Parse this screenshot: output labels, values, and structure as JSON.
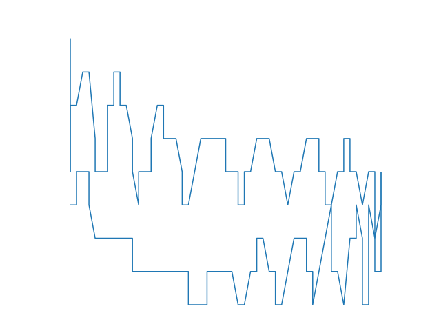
{
  "chart_data": {
    "type": "line",
    "title": "",
    "xlabel": "",
    "ylabel": "",
    "axes_visible": false,
    "grid": false,
    "legend": "none",
    "xlim": [
      0,
      50
    ],
    "ylim": [
      0,
      8.5
    ],
    "color": "#1f77b4",
    "series": [
      {
        "points": [
          [
            0,
            4
          ],
          [
            0,
            6
          ],
          [
            0,
            6
          ],
          [
            1,
            6
          ],
          [
            2,
            7
          ],
          [
            3,
            7
          ],
          [
            4,
            5
          ],
          [
            4,
            4
          ],
          [
            5,
            4
          ],
          [
            6,
            4
          ],
          [
            6,
            6
          ],
          [
            7,
            6
          ],
          [
            7,
            7
          ],
          [
            8,
            7
          ],
          [
            8,
            6
          ],
          [
            9,
            6
          ],
          [
            10,
            5
          ],
          [
            10,
            4
          ],
          [
            11,
            3
          ],
          [
            11,
            4
          ],
          [
            12,
            4
          ],
          [
            13,
            4
          ],
          [
            13,
            5
          ],
          [
            14,
            6
          ],
          [
            15,
            6
          ],
          [
            15,
            5
          ],
          [
            16,
            5
          ],
          [
            17,
            5
          ],
          [
            18,
            4
          ],
          [
            18,
            3
          ],
          [
            19,
            3
          ],
          [
            20,
            4
          ],
          [
            21,
            5
          ],
          [
            22,
            5
          ],
          [
            23,
            5
          ],
          [
            24,
            5
          ],
          [
            25,
            5
          ],
          [
            25,
            4
          ],
          [
            26,
            4
          ],
          [
            27,
            4
          ],
          [
            27,
            3
          ],
          [
            28,
            3
          ],
          [
            28,
            4
          ],
          [
            29,
            4
          ],
          [
            30,
            5
          ],
          [
            31,
            5
          ],
          [
            32,
            5
          ],
          [
            33,
            4
          ],
          [
            34,
            4
          ],
          [
            35,
            3
          ],
          [
            36,
            4
          ],
          [
            37,
            4
          ],
          [
            38,
            5
          ],
          [
            39,
            5
          ],
          [
            40,
            5
          ],
          [
            40,
            4
          ],
          [
            41,
            4
          ],
          [
            41,
            3
          ],
          [
            42,
            3
          ],
          [
            43,
            4
          ],
          [
            44,
            4
          ],
          [
            44,
            5
          ],
          [
            45,
            5
          ],
          [
            45,
            4
          ],
          [
            46,
            4
          ],
          [
            47,
            3
          ],
          [
            48,
            4
          ],
          [
            49,
            4
          ],
          [
            49,
            2
          ],
          [
            50,
            3
          ],
          [
            50,
            4
          ]
        ]
      },
      {
        "points": [
          [
            0,
            3
          ],
          [
            1,
            3
          ],
          [
            1,
            4
          ],
          [
            2,
            4
          ],
          [
            3,
            4
          ],
          [
            3,
            3
          ],
          [
            4,
            2
          ],
          [
            5,
            2
          ],
          [
            6,
            2
          ],
          [
            7,
            2
          ],
          [
            8,
            2
          ],
          [
            9,
            2
          ],
          [
            10,
            2
          ],
          [
            10,
            1
          ],
          [
            11,
            1
          ],
          [
            12,
            1
          ],
          [
            13,
            1
          ],
          [
            14,
            1
          ],
          [
            15,
            1
          ],
          [
            16,
            1
          ],
          [
            17,
            1
          ],
          [
            18,
            1
          ],
          [
            19,
            1
          ],
          [
            19,
            0
          ],
          [
            20,
            0
          ],
          [
            21,
            0
          ],
          [
            22,
            0
          ],
          [
            22,
            1
          ],
          [
            23,
            1
          ],
          [
            24,
            1
          ],
          [
            25,
            1
          ],
          [
            26,
            1
          ],
          [
            27,
            0
          ],
          [
            28,
            0
          ],
          [
            29,
            1
          ],
          [
            30,
            1
          ],
          [
            30,
            2
          ],
          [
            31,
            2
          ],
          [
            32,
            1
          ],
          [
            33,
            1
          ],
          [
            33,
            0
          ],
          [
            34,
            0
          ],
          [
            35,
            1
          ],
          [
            36,
            2
          ],
          [
            37,
            2
          ],
          [
            38,
            2
          ],
          [
            38,
            1
          ],
          [
            39,
            1
          ],
          [
            39,
            0
          ],
          [
            40,
            1
          ],
          [
            41,
            2
          ],
          [
            42,
            3
          ],
          [
            42,
            1
          ],
          [
            43,
            1
          ],
          [
            44,
            0
          ],
          [
            45,
            2
          ],
          [
            46,
            2
          ],
          [
            46,
            3
          ],
          [
            47,
            2
          ],
          [
            47,
            0
          ],
          [
            48,
            0
          ],
          [
            48,
            3
          ],
          [
            49,
            2
          ],
          [
            49,
            1
          ],
          [
            50,
            1
          ],
          [
            50,
            4
          ]
        ]
      },
      {
        "points": [
          [
            0,
            4
          ],
          [
            0,
            8
          ],
          [
            0,
            4
          ]
        ]
      }
    ]
  }
}
